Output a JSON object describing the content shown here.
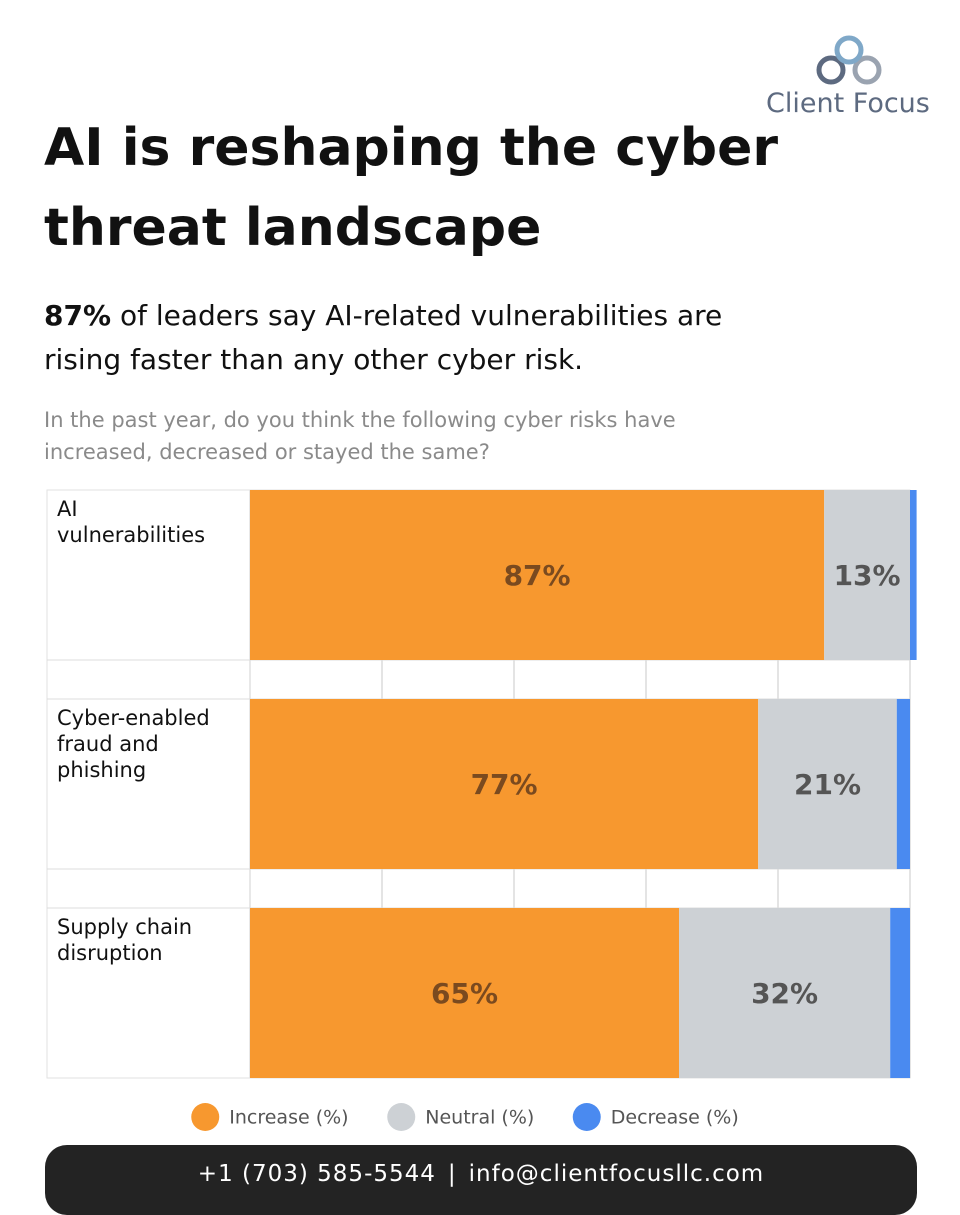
{
  "brand": "Client Focus",
  "footer": {
    "phone": "+1 (703) 585-5544",
    "separator": "|",
    "email": "info@clientfocusllc.com"
  },
  "chart_data": {
    "type": "stacked-bar",
    "title": "AI is reshaping the cyber threat landscape",
    "subtitle": {
      "highlight": "87%",
      "text": "of leaders say AI-related vulnerabilities are rising faster than any other cyber risk."
    },
    "question": "In the past year, do you think the following cyber risks have increased, decreased or stayed the same?",
    "categories": [
      "AI vulnerabilities",
      "Cyber-enabled fraud and phishing",
      "Supply chain disruption"
    ],
    "series": [
      {
        "name": "Increase (%)",
        "color": "#f7982f",
        "label_color": "#7a4a1f",
        "values": [
          87,
          77,
          65
        ],
        "value_labels": [
          "87%",
          "77%",
          "65%"
        ]
      },
      {
        "name": "Neutral (%)",
        "color": "#cdd1d5",
        "label_color": "#555555",
        "values": [
          13,
          21,
          32
        ],
        "value_labels": [
          "13%",
          "21%",
          "32%"
        ]
      },
      {
        "name": "Decrease (%)",
        "color": "#4a8af0",
        "values": [
          1,
          2,
          3
        ]
      }
    ],
    "xlim": [
      0,
      100
    ],
    "xticks": [
      0,
      20,
      40,
      60,
      80,
      100
    ],
    "grid": true,
    "legend": "bottom"
  }
}
